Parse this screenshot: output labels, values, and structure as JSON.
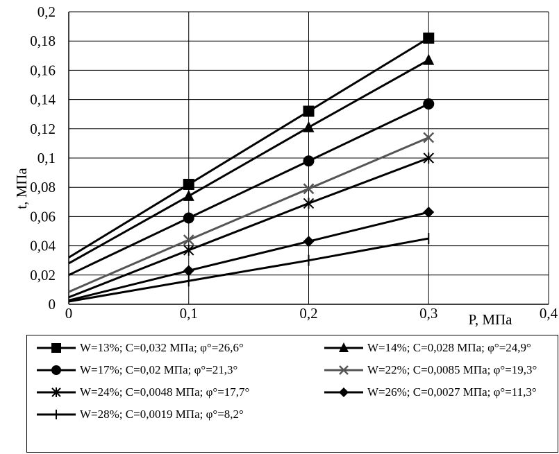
{
  "chart_data": {
    "type": "line",
    "title": "",
    "xlabel": "P, МПа",
    "ylabel": "t, МПа",
    "xlim": [
      0,
      0.4
    ],
    "ylim": [
      0,
      0.2
    ],
    "x_ticks": [
      "0",
      "0,1",
      "0,2",
      "0,3",
      "0,4"
    ],
    "y_ticks": [
      "0",
      "0,02",
      "0,04",
      "0,06",
      "0,08",
      "0,1",
      "0,12",
      "0,14",
      "0,16",
      "0,18",
      "0,2"
    ],
    "grid": true,
    "legend_position": "bottom",
    "series": [
      {
        "name": "W=13%; C=0,032 МПа; φ°=26,6°",
        "marker": "square",
        "color": "#000000",
        "x": [
          0,
          0.1,
          0.2,
          0.3
        ],
        "y": [
          0.032,
          0.082,
          0.132,
          0.182
        ]
      },
      {
        "name": "W=14%; C=0,028 МПа; φ°=24,9°",
        "marker": "triangle",
        "color": "#000000",
        "x": [
          0,
          0.1,
          0.2,
          0.3
        ],
        "y": [
          0.028,
          0.074,
          0.121,
          0.167
        ]
      },
      {
        "name": "W=17%; C=0,02 МПа; φ°=21,3°",
        "marker": "circle",
        "color": "#000000",
        "x": [
          0,
          0.1,
          0.2,
          0.3
        ],
        "y": [
          0.02,
          0.059,
          0.098,
          0.137
        ]
      },
      {
        "name": "W=22%; C=0,0085 МПа; φ°=19,3°",
        "marker": "x",
        "color": "#555555",
        "x": [
          0,
          0.1,
          0.2,
          0.3
        ],
        "y": [
          0.0085,
          0.044,
          0.079,
          0.114
        ]
      },
      {
        "name": "W=24%; C=0,0048 МПа; φ°=17,7°",
        "marker": "asterisk",
        "color": "#000000",
        "x": [
          0,
          0.1,
          0.2,
          0.3
        ],
        "y": [
          0.0048,
          0.037,
          0.069,
          0.1
        ]
      },
      {
        "name": "W=26%; C=0,0027 МПа; φ°=11,3°",
        "marker": "diamond",
        "color": "#000000",
        "x": [
          0,
          0.1,
          0.2,
          0.3
        ],
        "y": [
          0.0027,
          0.023,
          0.043,
          0.063
        ]
      },
      {
        "name": "W=28%; C=0,0019 МПа; φ°=8,2°",
        "marker": "plus",
        "color": "#000000",
        "x": [
          0,
          0.1,
          0.2,
          0.3
        ],
        "y": [
          0.0019,
          0.016,
          0.03,
          0.045
        ]
      }
    ]
  }
}
